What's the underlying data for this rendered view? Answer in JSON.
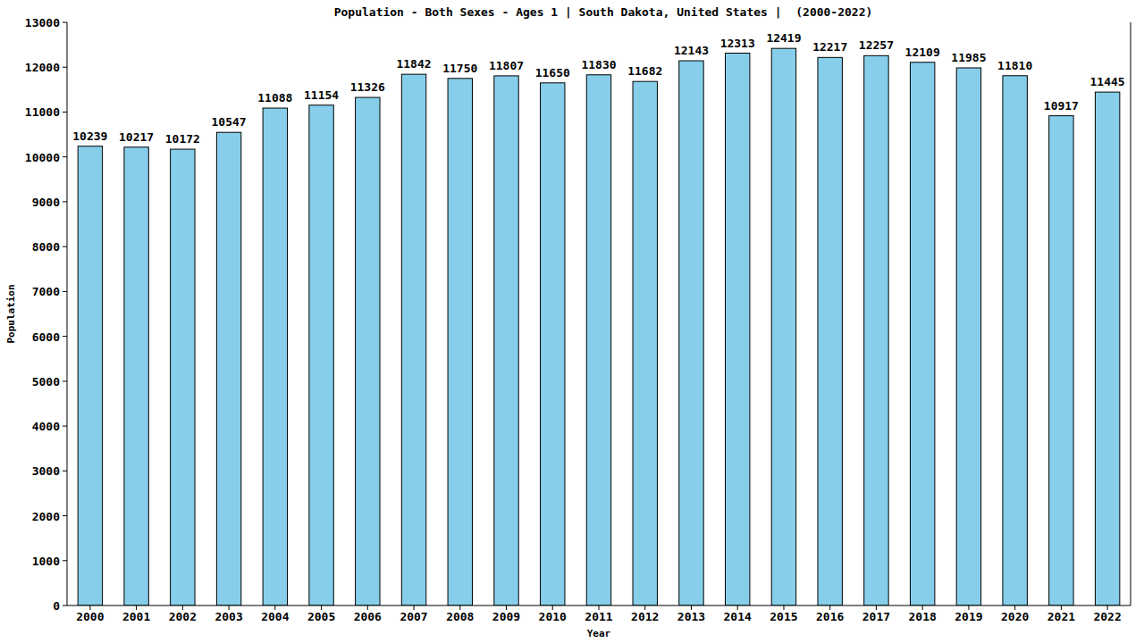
{
  "chart_data": {
    "type": "bar",
    "title": "Population - Both Sexes - Ages 1 | South Dakota, United States |  (2000-2022)",
    "x_label": "Year",
    "y_label": "Population",
    "categories": [
      "2000",
      "2001",
      "2002",
      "2003",
      "2004",
      "2005",
      "2006",
      "2007",
      "2008",
      "2009",
      "2010",
      "2011",
      "2012",
      "2013",
      "2014",
      "2015",
      "2016",
      "2017",
      "2018",
      "2019",
      "2020",
      "2021",
      "2022"
    ],
    "values": [
      10239,
      10217,
      10172,
      10547,
      11088,
      11154,
      11326,
      11842,
      11750,
      11807,
      11650,
      11830,
      11682,
      12143,
      12313,
      12419,
      12217,
      12257,
      12109,
      11985,
      11810,
      10917,
      11445
    ],
    "color": "#87ceeb",
    "ylim": [
      0,
      13000
    ],
    "yticks": [
      0,
      1000,
      2000,
      3000,
      4000,
      5000,
      6000,
      7000,
      8000,
      9000,
      10000,
      11000,
      12000,
      13000
    ],
    "grid": false,
    "data_labels": true
  }
}
